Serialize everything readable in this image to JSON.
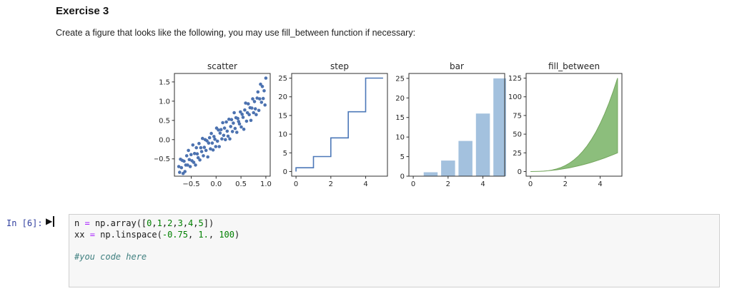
{
  "page": {
    "heading": "Exercise 3",
    "instruction": "Create a figure that looks like the following, you may use fill_between function if necessary:"
  },
  "cell": {
    "prompt": "In [6]:",
    "run_icon": "▶",
    "code_lines": [
      "n = np.array([0,1,2,3,4,5])",
      "xx = np.linspace(-0.75, 1., 100)",
      "",
      "#you code here"
    ]
  },
  "colors": {
    "scatter_blue": "#4c72b0",
    "step_blue": "#4c78b8",
    "bar_blue": "#a3c1de",
    "fill_green": "#8cbe7c",
    "fill_edge": "#74a65e",
    "prompt_navy": "#303f9f",
    "number_green": "#008000",
    "operator_purple": "#aa22ff",
    "comment_teal": "#408080",
    "cell_bg": "#f7f7f7",
    "cell_border": "#cfcfcf"
  },
  "chart_data": [
    {
      "type": "scatter",
      "title": "scatter",
      "color": "#4c72b0",
      "xlim": [
        -0.8375,
        1.0875
      ],
      "ylim": [
        -0.95,
        1.72
      ],
      "xticks": [
        -0.5,
        0.0,
        0.5,
        1.0
      ],
      "xtick_labels": [
        "−0.5",
        "0.0",
        "0.5",
        "1.0"
      ],
      "yticks": [
        -0.5,
        0.0,
        0.5,
        1.0,
        1.5
      ],
      "ytick_labels": [
        "−0.5",
        "0.0",
        "0.5",
        "1.0",
        "1.5"
      ],
      "points": {
        "x": [
          -0.75,
          -0.732,
          -0.715,
          -0.697,
          -0.679,
          -0.662,
          -0.644,
          -0.626,
          -0.609,
          -0.591,
          -0.573,
          -0.556,
          -0.538,
          -0.52,
          -0.503,
          -0.485,
          -0.467,
          -0.449,
          -0.432,
          -0.414,
          -0.396,
          -0.379,
          -0.361,
          -0.343,
          -0.326,
          -0.308,
          -0.29,
          -0.273,
          -0.255,
          -0.237,
          -0.22,
          -0.202,
          -0.184,
          -0.166,
          -0.149,
          -0.131,
          -0.113,
          -0.096,
          -0.078,
          -0.06,
          -0.043,
          -0.025,
          -0.007,
          0.01,
          0.028,
          0.046,
          0.063,
          0.081,
          0.099,
          0.116,
          0.134,
          0.152,
          0.17,
          0.187,
          0.205,
          0.223,
          0.24,
          0.258,
          0.276,
          0.293,
          0.311,
          0.329,
          0.346,
          0.364,
          0.382,
          0.399,
          0.417,
          0.435,
          0.452,
          0.47,
          0.488,
          0.505,
          0.523,
          0.541,
          0.558,
          0.576,
          0.594,
          0.612,
          0.629,
          0.647,
          0.665,
          0.682,
          0.7,
          0.718,
          0.735,
          0.753,
          0.771,
          0.788,
          0.806,
          0.824,
          0.841,
          0.859,
          0.877,
          0.894,
          0.912,
          0.93,
          0.947,
          0.965,
          0.983,
          1.0
        ],
        "y": [
          -0.7,
          -0.85,
          -0.51,
          -0.73,
          -0.54,
          -0.88,
          -0.56,
          -0.83,
          -0.66,
          -0.42,
          -0.66,
          -0.28,
          -0.52,
          -0.7,
          -0.39,
          -0.55,
          -0.14,
          -0.59,
          -0.36,
          -0.66,
          -0.21,
          -0.37,
          -0.47,
          -0.1,
          -0.53,
          -0.21,
          -0.31,
          0.03,
          -0.42,
          -0.2,
          0.0,
          -0.28,
          -0.03,
          -0.45,
          -0.09,
          0.05,
          -0.24,
          0.16,
          -0.09,
          -0.27,
          0.08,
          0.01,
          -0.18,
          0.3,
          -0.04,
          0.25,
          -0.18,
          0.17,
          0.26,
          0.02,
          0.44,
          0.11,
          0.3,
          0.0,
          0.46,
          0.22,
          0.09,
          0.53,
          0.02,
          0.34,
          0.52,
          0.21,
          0.43,
          0.7,
          0.29,
          0.57,
          0.19,
          0.55,
          0.47,
          0.41,
          0.72,
          0.33,
          0.66,
          0.58,
          0.27,
          0.77,
          0.95,
          0.48,
          0.7,
          0.93,
          0.65,
          0.83,
          0.5,
          0.82,
          1.06,
          0.7,
          0.99,
          0.8,
          0.65,
          1.08,
          1.24,
          0.76,
          1.06,
          1.44,
          0.97,
          1.38,
          1.07,
          1.27,
          0.9,
          1.6
        ]
      }
    },
    {
      "type": "step",
      "title": "step",
      "color": "#4c78b8",
      "xlim": [
        -0.25,
        5.25
      ],
      "ylim": [
        -1.25,
        26.25
      ],
      "xticks": [
        0,
        2,
        4
      ],
      "xtick_labels": [
        "0",
        "2",
        "4"
      ],
      "yticks": [
        0,
        5,
        10,
        15,
        20,
        25
      ],
      "ytick_labels": [
        "0",
        "5",
        "10",
        "15",
        "20",
        "25"
      ],
      "x": [
        0,
        1,
        2,
        3,
        4,
        5
      ],
      "y": [
        0,
        1,
        4,
        9,
        16,
        25
      ]
    },
    {
      "type": "bar",
      "title": "bar",
      "color": "#a3c1de",
      "bar_width": 0.8,
      "xlim": [
        -0.25,
        5.25
      ],
      "ylim": [
        0,
        26.25
      ],
      "xticks": [
        0,
        2,
        4
      ],
      "xtick_labels": [
        "0",
        "2",
        "4"
      ],
      "yticks": [
        0,
        5,
        10,
        15,
        20,
        25
      ],
      "ytick_labels": [
        "0",
        "5",
        "10",
        "15",
        "20",
        "25"
      ],
      "x": [
        0,
        1,
        2,
        3,
        4,
        5
      ],
      "y": [
        0,
        1,
        4,
        9,
        16,
        25
      ]
    },
    {
      "type": "area",
      "title": "fill_between",
      "color": "#8cbe7c",
      "edge_color": "#74a65e",
      "xlim": [
        -0.25,
        5.25
      ],
      "ylim": [
        -6.25,
        131.25
      ],
      "xticks": [
        0,
        2,
        4
      ],
      "xtick_labels": [
        "0",
        "2",
        "4"
      ],
      "yticks": [
        0,
        25,
        50,
        75,
        100,
        125
      ],
      "ytick_labels": [
        "0",
        "25",
        "50",
        "75",
        "100",
        "125"
      ],
      "x": [
        0,
        0.25,
        0.5,
        0.75,
        1,
        1.25,
        1.5,
        1.75,
        2,
        2.25,
        2.5,
        2.75,
        3,
        3.25,
        3.5,
        3.75,
        4,
        4.25,
        4.5,
        4.75,
        5
      ],
      "y_lower": [
        0,
        0.06,
        0.25,
        0.56,
        1,
        1.56,
        2.25,
        3.06,
        4,
        5.06,
        6.25,
        7.56,
        9,
        10.56,
        12.25,
        14.06,
        16,
        18.06,
        20.25,
        22.56,
        25
      ],
      "y_upper": [
        0,
        0.02,
        0.13,
        0.42,
        1,
        1.95,
        3.38,
        5.36,
        8,
        11.39,
        15.63,
        20.8,
        27,
        34.33,
        42.88,
        52.73,
        64,
        76.77,
        91.13,
        107.17,
        125
      ]
    }
  ]
}
